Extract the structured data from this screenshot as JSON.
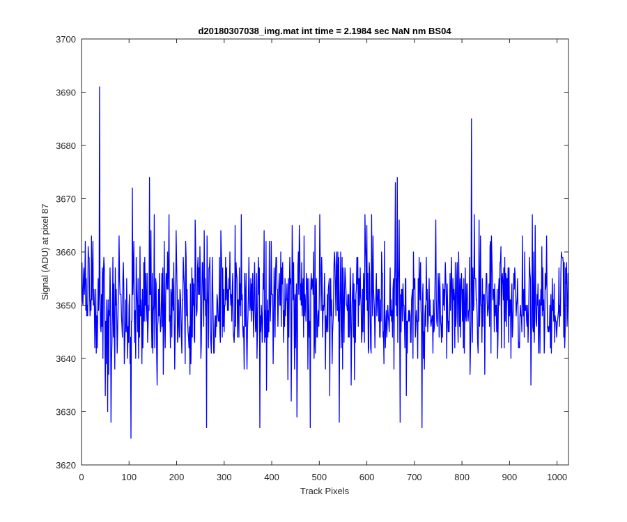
{
  "chart_data": {
    "type": "line",
    "title": "d20180307038_img.mat int time = 2.1984 sec  NaN nm BS04",
    "xlabel": "Track Pixels",
    "ylabel": "Signal (ADU) at pixel 87",
    "xlim": [
      0,
      1024
    ],
    "ylim": [
      3620,
      3700
    ],
    "xticks": [
      0,
      100,
      200,
      300,
      400,
      500,
      600,
      700,
      800,
      900,
      1000
    ],
    "yticks": [
      3620,
      3630,
      3640,
      3650,
      3660,
      3670,
      3680,
      3690,
      3700
    ],
    "grid": false,
    "legend": "none",
    "series_color": "#0000ff",
    "series": [
      {
        "noise": {
          "n": 1024,
          "x_start": 1,
          "mean": 3650.6,
          "spread": 6.2,
          "min": 3625,
          "max": 3691
        },
        "spikes": [
          {
            "x": 38,
            "y": 3691
          },
          {
            "x": 55,
            "y": 3630
          },
          {
            "x": 62,
            "y": 3628
          },
          {
            "x": 104,
            "y": 3625
          },
          {
            "x": 107,
            "y": 3672
          },
          {
            "x": 143,
            "y": 3674
          },
          {
            "x": 263,
            "y": 3627
          },
          {
            "x": 375,
            "y": 3627
          },
          {
            "x": 453,
            "y": 3629
          },
          {
            "x": 481,
            "y": 3627
          },
          {
            "x": 542,
            "y": 3628
          },
          {
            "x": 660,
            "y": 3673
          },
          {
            "x": 664,
            "y": 3674
          },
          {
            "x": 670,
            "y": 3628
          },
          {
            "x": 716,
            "y": 3627
          },
          {
            "x": 820,
            "y": 3685
          },
          {
            "x": 948,
            "y": 3667
          }
        ]
      }
    ]
  }
}
